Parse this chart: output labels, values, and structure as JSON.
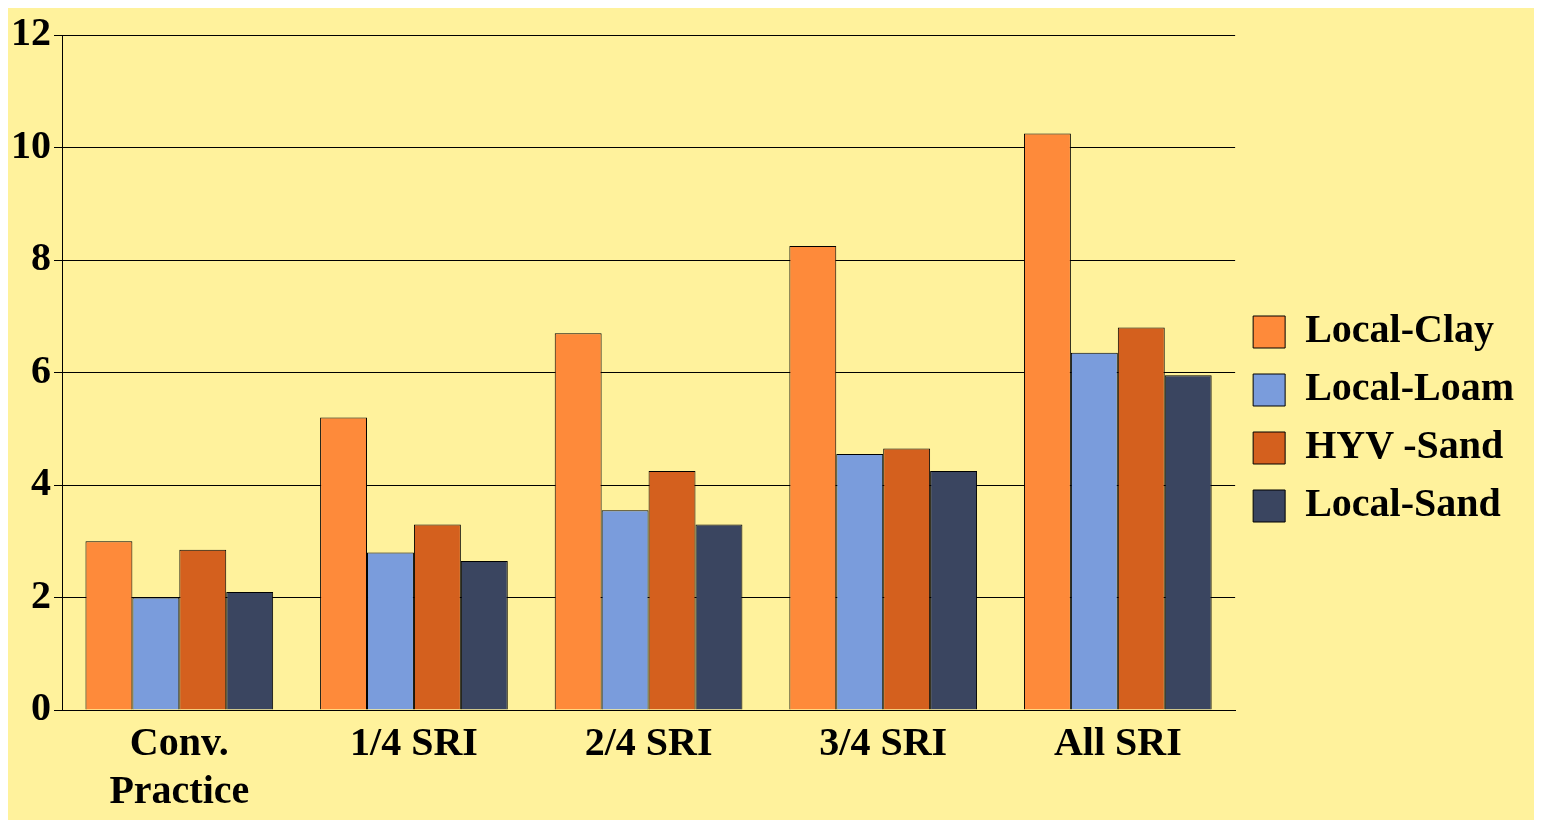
{
  "chart_data": {
    "type": "bar",
    "categories": [
      "Conv. Practice",
      "1/4 SRI",
      "2/4 SRI",
      "3/4 SRI",
      "All SRI"
    ],
    "series": [
      {
        "name": "Local-Clay",
        "color": "#fe8a3a",
        "values": [
          3.0,
          5.2,
          6.7,
          8.25,
          10.25
        ]
      },
      {
        "name": "Local-Loam",
        "color": "#7a9cdc",
        "values": [
          2.0,
          2.8,
          3.55,
          4.55,
          6.35
        ]
      },
      {
        "name": "HYV -Sand",
        "color": "#d4601e",
        "values": [
          2.85,
          3.3,
          4.25,
          4.65,
          6.8
        ]
      },
      {
        "name": "Local-Sand",
        "color": "#3a4560",
        "values": [
          2.1,
          2.65,
          3.3,
          4.25,
          5.95
        ]
      }
    ],
    "ylim": [
      0,
      12
    ],
    "yticks": [
      0,
      2,
      4,
      6,
      8,
      10,
      12
    ],
    "grid": "y",
    "legend": "right"
  }
}
